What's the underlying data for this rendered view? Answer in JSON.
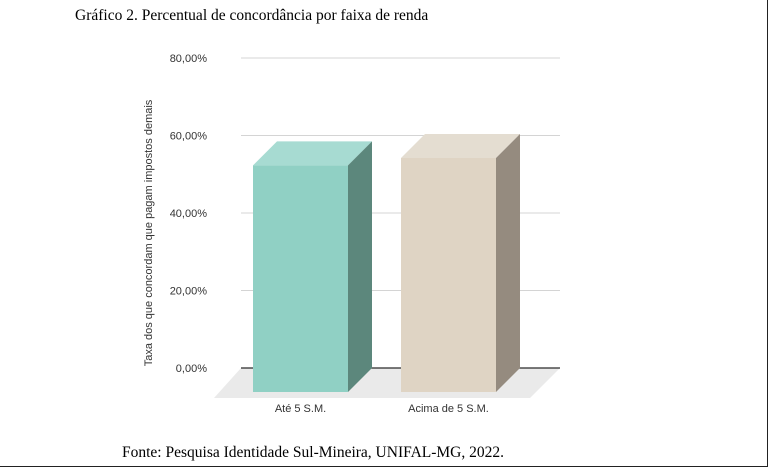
{
  "caption": "Gráfico 2. Percentual de concordância por faixa de renda",
  "source": "Fonte: Pesquisa Identidade Sul-Mineira, UNIFAL-MG, 2022.",
  "colors": {
    "bar1_front": "#90d0c4",
    "bar1_top": "#a7dbd2",
    "bar1_side": "#5c877c",
    "bar2_front": "#dfd4c4",
    "bar2_top": "#e4ddd1",
    "bar2_side": "#958b7f",
    "floor": "#eaeaea",
    "grid": "#d4d4d4",
    "baseline": "#2a2a2a",
    "text": "#333333"
  },
  "chart_data": {
    "type": "bar",
    "style": "3d",
    "title": "",
    "xlabel": "",
    "ylabel": "Taxa dos que concordam que pagam impostos demais",
    "categories": [
      "Até 5 S.M.",
      "Acima de 5 S.M."
    ],
    "values": [
      58.5,
      60.4
    ],
    "ylim": [
      0,
      80
    ],
    "yticks": [
      0,
      20,
      40,
      60,
      80
    ],
    "ytick_labels": [
      "0,00%",
      "20,00%",
      "40,00%",
      "60,00%",
      "80,00%"
    ],
    "grid": true,
    "legend": "none"
  }
}
